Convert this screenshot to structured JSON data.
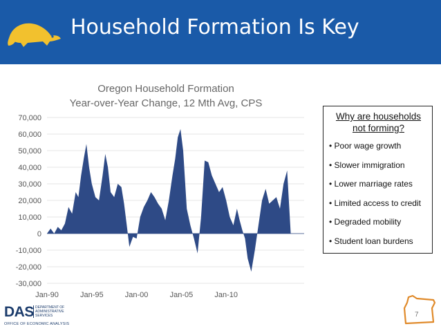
{
  "header": {
    "title": "Household Formation Is Key",
    "logo_icon": "beaver-icon",
    "bg_color": "#1a5aa8",
    "logo_color": "#f2c12e"
  },
  "chart_data": {
    "type": "area",
    "title": "Oregon Household Formation",
    "subtitle": "Year-over-Year Change, 12 Mth Avg, CPS",
    "xlabel": "",
    "ylabel": "",
    "xlim": [
      1990,
      2018.7
    ],
    "ylim": [
      -30000,
      70000
    ],
    "grid": true,
    "color": "#2e4a86",
    "y_ticks": [
      "70,000",
      "60,000",
      "50,000",
      "40,000",
      "30,000",
      "20,000",
      "10,000",
      "0",
      "-10,000",
      "-20,000",
      "-30,000"
    ],
    "x_ticks": [
      "Jan-90",
      "Jan-95",
      "Jan-00",
      "Jan-05",
      "Jan-10"
    ],
    "x": [
      1990.0,
      1990.4,
      1990.8,
      1991.2,
      1991.6,
      1992.0,
      1992.4,
      1992.8,
      1993.2,
      1993.5,
      1993.8,
      1994.1,
      1994.4,
      1994.7,
      1995.0,
      1995.4,
      1995.8,
      1996.2,
      1996.5,
      1996.8,
      1997.1,
      1997.5,
      1997.9,
      1998.3,
      1998.6,
      1998.9,
      1999.2,
      1999.6,
      2000.0,
      2000.4,
      2000.8,
      2001.2,
      2001.6,
      2002.0,
      2002.4,
      2002.8,
      2003.2,
      2003.6,
      2004.0,
      2004.3,
      2004.6,
      2004.9,
      2005.2,
      2005.6,
      2006.0,
      2006.4,
      2006.8,
      2007.2,
      2007.6,
      2008.0,
      2008.4,
      2008.8,
      2009.2,
      2009.6,
      2010.0,
      2010.4,
      2010.8,
      2011.2,
      2011.5,
      2011.8,
      2012.1,
      2012.4,
      2012.8,
      2013.2,
      2013.6,
      2014.0,
      2014.4,
      2014.8,
      2015.2,
      2015.6,
      2016.0,
      2016.4,
      2016.8,
      2017.2,
      2017.6,
      2018.0,
      2018.3,
      2018.5,
      2018.7
    ],
    "y": [
      0,
      3000,
      0,
      4000,
      2000,
      6000,
      16000,
      12000,
      25000,
      22000,
      35000,
      45000,
      54000,
      40000,
      30000,
      22000,
      20000,
      35000,
      48000,
      40000,
      25000,
      22000,
      30000,
      28000,
      18000,
      5000,
      -8000,
      -2000,
      -3000,
      10000,
      16000,
      20000,
      25000,
      22000,
      18000,
      15000,
      8000,
      20000,
      35000,
      45000,
      58000,
      63000,
      50000,
      15000,
      5000,
      -3000,
      -12000,
      10000,
      44000,
      43000,
      35000,
      30000,
      25000,
      28000,
      20000,
      10000,
      5000,
      15000,
      8000,
      2000,
      -3000,
      -15000,
      -23000,
      -10000,
      5000,
      20000,
      27000,
      18000,
      20000,
      22000,
      15000,
      30000,
      38000,
      0,
      0,
      0,
      0,
      0,
      0
    ]
  },
  "callout": {
    "title": "Why are households not forming?",
    "items": [
      "• Poor wage growth",
      "• Slower immigration",
      "• Lower marriage rates",
      "• Limited access to credit",
      "• Degraded mobility",
      "• Student loan burdens"
    ]
  },
  "footer": {
    "logo_abbrev": "DAS",
    "dept_lines": "DEPARTMENT OF ADMINISTRATIVE SERVICES",
    "office": "OFFICE OF ECONOMIC ANALYSIS",
    "page_number": "7",
    "state_icon": "oregon-outline-icon"
  }
}
